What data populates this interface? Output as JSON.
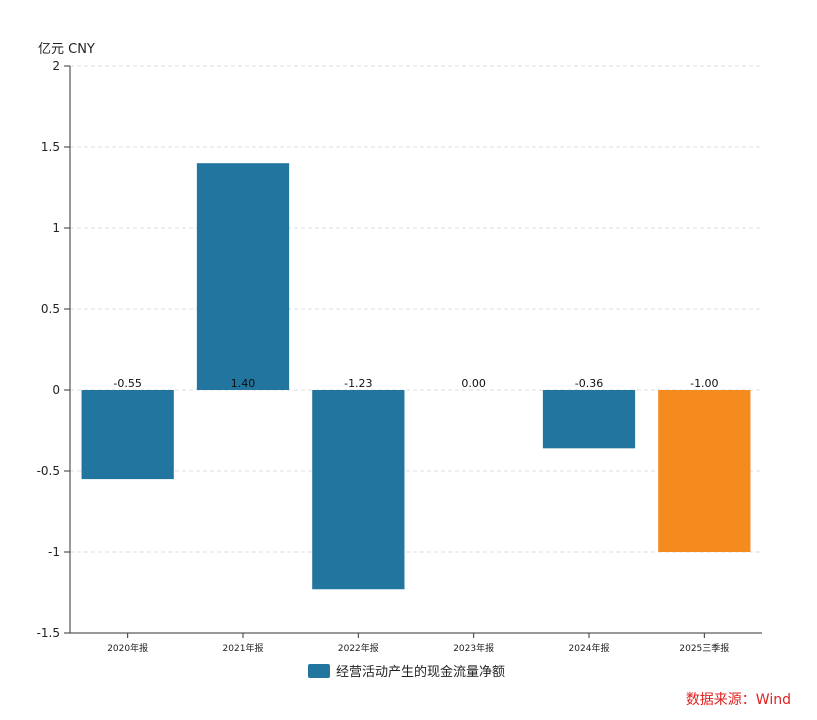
{
  "chart_data": {
    "type": "bar",
    "unit_label": "亿元  CNY",
    "categories": [
      "2020年报",
      "2021年报",
      "2022年报",
      "2023年报",
      "2024年报",
      "2025三季报"
    ],
    "series": [
      {
        "name": "经营活动产生的现金流量净额",
        "values": [
          -0.55,
          1.4,
          -1.23,
          0.0,
          -0.36,
          -1.0
        ],
        "value_labels": [
          "-0.55",
          "1.40",
          "-1.23",
          "0.00",
          "-0.36",
          "-1.00"
        ],
        "color": "#21759f",
        "highlight_color": "#f58a1f",
        "highlight_index": 5
      }
    ],
    "ylim": [
      -1.5,
      2
    ],
    "yticks": [
      2,
      1.5,
      1,
      0.5,
      0,
      -0.5,
      -1,
      -1.5
    ],
    "ytick_labels": [
      "2",
      "1.5",
      "1",
      "0.5",
      "0",
      "-0.5",
      "-1",
      "-1.5"
    ],
    "grid": true,
    "legend_position": "bottom-center"
  },
  "source": {
    "text": "数据来源：Wind",
    "color": "#e02020"
  }
}
